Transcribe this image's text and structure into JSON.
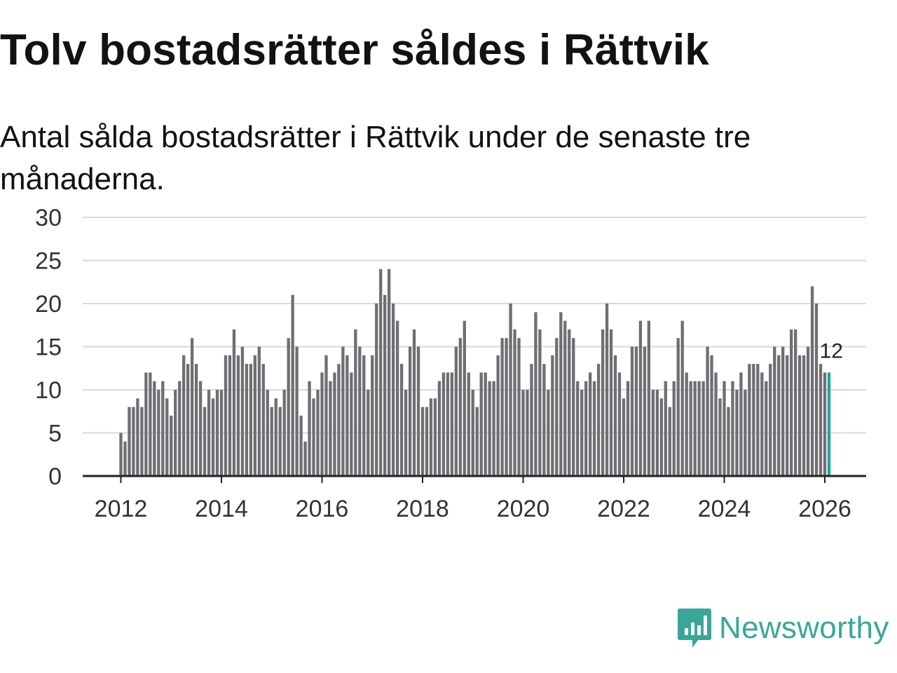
{
  "title": "Tolv bostadsrätter såldes i Rättvik",
  "subtitle": "Antal sålda bostadsrätter i Rättvik under de senaste tre månaderna.",
  "brand": {
    "name": "Newsworthy",
    "color": "#3aa69a"
  },
  "colors": {
    "bar": "#6e6e73",
    "highlight": "#1aa59b",
    "grid": "#d9d9d9",
    "axis": "#222222"
  },
  "chart_data": {
    "type": "bar",
    "title": "Tolv bostadsrätter såldes i Rättvik",
    "xlabel": "",
    "ylabel": "",
    "ylim": [
      0,
      30
    ],
    "yticks": [
      "0",
      "5",
      "10",
      "15",
      "20",
      "25",
      "30"
    ],
    "xticks": [
      "2012",
      "2014",
      "2016",
      "2018",
      "2020",
      "2022",
      "2024",
      "2026"
    ],
    "start": "2012-01",
    "values": [
      5,
      4,
      8,
      8,
      9,
      8,
      12,
      12,
      11,
      10,
      11,
      9,
      7,
      10,
      11,
      14,
      13,
      16,
      13,
      11,
      8,
      10,
      9,
      10,
      10,
      14,
      14,
      17,
      14,
      15,
      13,
      13,
      14,
      15,
      13,
      10,
      8,
      9,
      8,
      10,
      16,
      21,
      15,
      7,
      4,
      11,
      9,
      10,
      12,
      14,
      11,
      12,
      13,
      15,
      14,
      12,
      17,
      15,
      14,
      10,
      14,
      20,
      24,
      21,
      24,
      20,
      18,
      13,
      10,
      15,
      17,
      15,
      8,
      8,
      9,
      9,
      11,
      12,
      12,
      12,
      15,
      16,
      18,
      12,
      10,
      8,
      12,
      12,
      11,
      11,
      14,
      16,
      16,
      20,
      17,
      16,
      10,
      10,
      13,
      19,
      17,
      13,
      10,
      14,
      16,
      19,
      18,
      17,
      16,
      11,
      10,
      11,
      12,
      11,
      13,
      17,
      20,
      17,
      14,
      12,
      9,
      11,
      15,
      15,
      18,
      15,
      18,
      10,
      10,
      9,
      11,
      8,
      11,
      16,
      18,
      12,
      11,
      11,
      11,
      11,
      15,
      14,
      12,
      9,
      11,
      8,
      11,
      10,
      12,
      10,
      13,
      13,
      13,
      12,
      11,
      13,
      15,
      14,
      15,
      14,
      17,
      17,
      14,
      14,
      15,
      22,
      20,
      13,
      12,
      12
    ],
    "highlight_index": 169,
    "highlight_label": "12",
    "grid": true,
    "legend": "none"
  }
}
